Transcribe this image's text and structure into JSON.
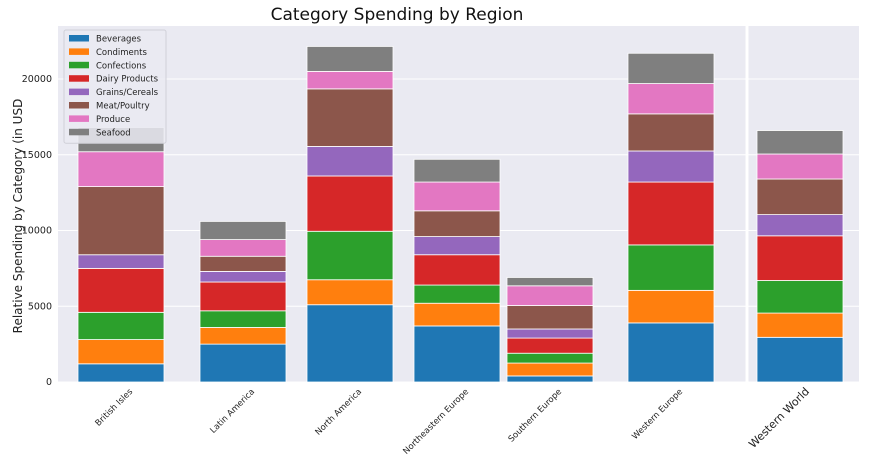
{
  "chart_data": {
    "type": "bar",
    "stacked": true,
    "title": "Category Spending by Region",
    "xlabel": "",
    "ylabel": "Relative Spending by Category (in USD",
    "ylim": [
      0,
      23500
    ],
    "yticks": [
      0,
      5000,
      10000,
      15000,
      20000
    ],
    "ytick_labels": [
      "0",
      "5000",
      "10000",
      "15000",
      "20000"
    ],
    "grid": true,
    "legend_position": "top-left",
    "categories": [
      "British Isles",
      "Latin America",
      "North America",
      "Northeastern Europe",
      "Southern Europe",
      "Western Europe",
      "Western World"
    ],
    "series": [
      {
        "name": "Beverages",
        "color": "#1f77b4",
        "values": [
          1200,
          2500,
          5100,
          3700,
          400,
          3900,
          2950
        ]
      },
      {
        "name": "Condiments",
        "color": "#ff7f0e",
        "values": [
          1600,
          1100,
          1650,
          1500,
          850,
          2150,
          1600
        ]
      },
      {
        "name": "Confections",
        "color": "#2ca02c",
        "values": [
          1800,
          1100,
          3200,
          1200,
          650,
          3000,
          2150
        ]
      },
      {
        "name": "Dairy Products",
        "color": "#d62728",
        "values": [
          2900,
          1900,
          3650,
          2000,
          1000,
          4150,
          2950
        ]
      },
      {
        "name": "Grains/Cereals",
        "color": "#9467bd",
        "values": [
          900,
          700,
          1950,
          1200,
          600,
          2050,
          1400
        ]
      },
      {
        "name": "Meat/Poultry",
        "color": "#8c564b",
        "values": [
          4500,
          1000,
          3800,
          1700,
          1550,
          2450,
          2350
        ]
      },
      {
        "name": "Produce",
        "color": "#e377c2",
        "values": [
          2300,
          1100,
          1150,
          1900,
          1300,
          2000,
          1650
        ]
      },
      {
        "name": "Seafood",
        "color": "#7f7f7f",
        "values": [
          1600,
          1200,
          1650,
          1500,
          550,
          2000,
          1550
        ]
      }
    ]
  }
}
